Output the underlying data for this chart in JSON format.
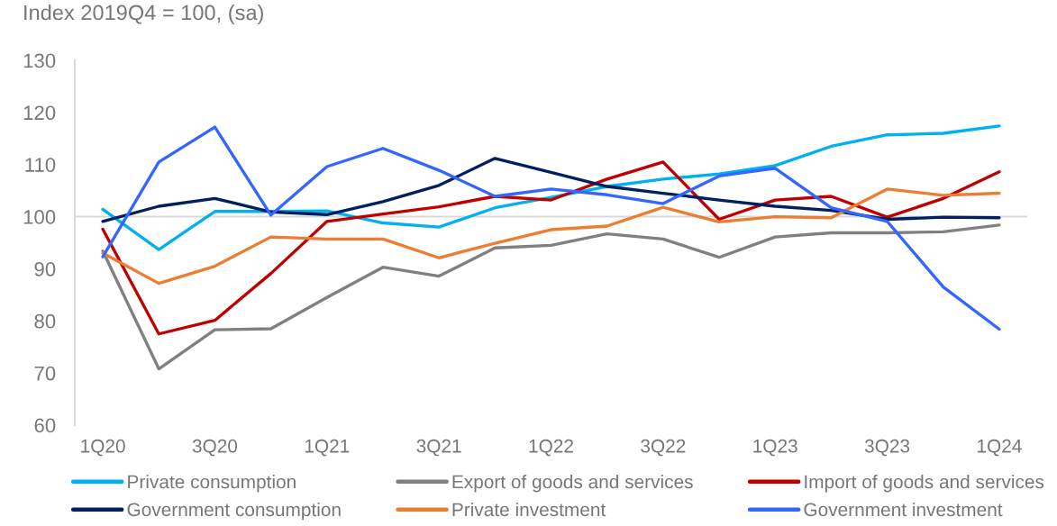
{
  "chart_data": {
    "type": "line",
    "ylabel": "Index 2019Q4 = 100, (sa)",
    "categories": [
      "1Q20",
      null,
      "3Q20",
      null,
      "1Q21",
      null,
      "3Q21",
      null,
      "1Q22",
      null,
      "3Q22",
      null,
      "1Q23",
      null,
      "3Q23",
      null,
      "1Q24"
    ],
    "series": [
      {
        "name": "Private consumption",
        "color": "#00b0f0",
        "values": [
          101.4,
          93.7,
          101.0,
          101.0,
          101.1,
          98.8,
          98.0,
          101.7,
          103.7,
          105.8,
          107.2,
          108.2,
          109.8,
          113.5,
          115.7,
          116.0,
          117.4
        ]
      },
      {
        "name": "Export of goods and services",
        "color": "#808080",
        "values": [
          93.4,
          70.8,
          78.3,
          78.5,
          84.5,
          90.3,
          88.6,
          94.0,
          94.5,
          96.7,
          95.7,
          92.2,
          96.1,
          96.9,
          96.9,
          97.1,
          98.4
        ]
      },
      {
        "name": "Import of goods and services",
        "color": "#c00000",
        "values": [
          97.6,
          77.5,
          80.1,
          89.1,
          99.1,
          100.5,
          101.9,
          103.9,
          103.2,
          107.2,
          110.5,
          99.5,
          103.2,
          103.9,
          99.9,
          103.5,
          108.6
        ]
      },
      {
        "name": "Government consumption",
        "color": "#002060",
        "values": [
          99.1,
          102.0,
          103.5,
          100.9,
          100.4,
          102.9,
          106.0,
          111.2,
          108.5,
          105.8,
          104.5,
          103.2,
          102.0,
          101.2,
          99.5,
          99.9,
          99.8
        ]
      },
      {
        "name": "Private investment",
        "color": "#ed7d31",
        "values": [
          93.0,
          87.2,
          90.5,
          96.1,
          95.7,
          95.7,
          92.1,
          94.9,
          97.5,
          98.2,
          101.8,
          99.0,
          100.0,
          99.8,
          105.3,
          104.1,
          104.5
        ]
      },
      {
        "name": "Government investment",
        "color": "#3366ff",
        "values": [
          92.3,
          110.5,
          117.2,
          100.3,
          109.6,
          113.1,
          108.9,
          103.9,
          105.3,
          104.2,
          102.5,
          107.8,
          109.3,
          101.7,
          99.1,
          86.5,
          78.4
        ]
      }
    ],
    "ylim": [
      60,
      130
    ],
    "yticks": [
      60,
      70,
      80,
      90,
      100,
      110,
      120,
      130
    ],
    "ref_lines": [
      {
        "axis": "y",
        "value": 100,
        "color": "#d9d9d9"
      }
    ],
    "grid": false,
    "legend": "bottom",
    "marker": "none",
    "line_style": "solid"
  }
}
